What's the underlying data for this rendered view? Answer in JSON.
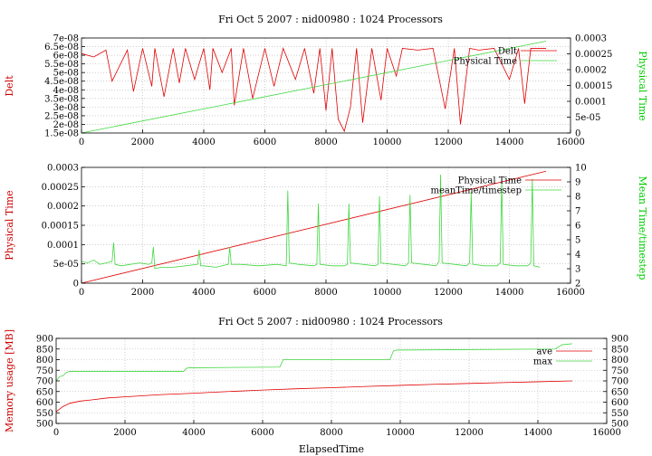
{
  "chart_data": [
    {
      "type": "line",
      "title": "Fri Oct 5 2007 : nid00980 : 1024 Processors",
      "xlabel": "",
      "ylabel": "Delt",
      "y2label": "Physical Time",
      "xlim": [
        0,
        16000
      ],
      "ylim": [
        1.5e-08,
        7e-08
      ],
      "y2lim": [
        0,
        0.0003
      ],
      "x_ticks": [
        "0",
        "2000",
        "4000",
        "6000",
        "8000",
        "10000",
        "12000",
        "14000",
        "16000"
      ],
      "y_ticks": [
        "1.5e-08",
        "2e-08",
        "2.5e-08",
        "3e-08",
        "3.5e-08",
        "4e-08",
        "4.5e-08",
        "5e-08",
        "5.5e-08",
        "6e-08",
        "6.5e-08",
        "7e-08"
      ],
      "y2_ticks": [
        "0",
        "5e-05",
        "0.0001",
        "0.00015",
        "0.0002",
        "0.00025",
        "0.0003"
      ],
      "grid": true,
      "legend_position": "top-right",
      "colors": {
        "left": "#cc0000",
        "right": "#00cc00"
      },
      "series": [
        {
          "name": "Delt",
          "axis": "left",
          "color": "#e00000",
          "x": [
            0,
            400,
            800,
            1000,
            1500,
            1700,
            2000,
            2300,
            2400,
            2700,
            3000,
            3200,
            3400,
            3700,
            4000,
            4200,
            4300,
            4600,
            4900,
            5000,
            5300,
            5600,
            6000,
            6300,
            6600,
            7000,
            7300,
            7600,
            7800,
            8000,
            8200,
            8400,
            8600,
            8800,
            9000,
            9200,
            9500,
            9800,
            10000,
            10300,
            10500,
            11000,
            11500,
            11900,
            12200,
            12400,
            12700,
            13000,
            13500,
            14000,
            14300,
            14500,
            14700,
            15000,
            15200
          ],
          "y": [
            6.1e-08,
            5.9e-08,
            6.3e-08,
            4.5e-08,
            6.3e-08,
            3.9e-08,
            6.4e-08,
            4.2e-08,
            6.4e-08,
            3.6e-08,
            6.4e-08,
            4.4e-08,
            6.4e-08,
            4.6e-08,
            6.4e-08,
            4e-08,
            6.4e-08,
            5e-08,
            6.4e-08,
            3.1e-08,
            6.4e-08,
            3.5e-08,
            6.4e-08,
            4.2e-08,
            6.4e-08,
            4.6e-08,
            6.4e-08,
            3.8e-08,
            6.4e-08,
            2.8e-08,
            6.4e-08,
            2.3e-08,
            1.6e-08,
            3e-08,
            6.4e-08,
            2.1e-08,
            6.4e-08,
            3.4e-08,
            6.4e-08,
            4.8e-08,
            6.4e-08,
            6.3e-08,
            6.4e-08,
            2.9e-08,
            6.4e-08,
            2e-08,
            6.4e-08,
            6.3e-08,
            6.4e-08,
            4.6e-08,
            6.4e-08,
            3.2e-08,
            6.4e-08,
            6.4e-08,
            6.4e-08
          ]
        },
        {
          "name": "Physical Time",
          "axis": "right",
          "color": "#40d840",
          "x": [
            0,
            15200
          ],
          "y": [
            0,
            0.00029
          ]
        }
      ]
    },
    {
      "type": "line",
      "title": "",
      "xlabel": "",
      "ylabel": "Physical Time",
      "y2label": "Mean Time/timestep",
      "xlim": [
        0,
        16000
      ],
      "ylim": [
        0,
        0.0003
      ],
      "y2lim": [
        2,
        10
      ],
      "x_ticks": [
        "0",
        "2000",
        "4000",
        "6000",
        "8000",
        "10000",
        "12000",
        "14000",
        "16000"
      ],
      "y_ticks": [
        "0",
        "5e-05",
        "0.0001",
        "0.00015",
        "0.0002",
        "0.00025",
        "0.0003"
      ],
      "y2_ticks": [
        "2",
        "3",
        "4",
        "5",
        "6",
        "7",
        "8",
        "9",
        "10"
      ],
      "grid": true,
      "legend_position": "top-right",
      "colors": {
        "left": "#cc0000",
        "right": "#00cc00"
      },
      "series": [
        {
          "name": "Physical Time",
          "axis": "left",
          "color": "#e00000",
          "x": [
            0,
            15200
          ],
          "y": [
            0,
            0.00029
          ]
        },
        {
          "name": "meanTime/timestep",
          "axis": "right",
          "color": "#40d840",
          "x": [
            0,
            200,
            400,
            600,
            800,
            1000,
            1050,
            1100,
            1300,
            1600,
            1900,
            2200,
            2300,
            2350,
            2400,
            2600,
            3000,
            3400,
            3800,
            3850,
            3900,
            4000,
            4400,
            4800,
            4850,
            4900,
            5200,
            5800,
            6400,
            6700,
            6750,
            6800,
            7100,
            7600,
            7700,
            7750,
            7800,
            8200,
            8600,
            8700,
            8750,
            8800,
            9200,
            9600,
            9700,
            9750,
            9800,
            10200,
            10600,
            10700,
            10750,
            10800,
            11200,
            11600,
            11700,
            11750,
            11800,
            12200,
            12600,
            12700,
            12750,
            12800,
            13200,
            13600,
            13700,
            13750,
            13800,
            14200,
            14600,
            14700,
            14750,
            14800,
            15000
          ],
          "y": [
            3.5,
            3.4,
            3.6,
            3.3,
            3.4,
            3.5,
            4.8,
            3.3,
            3.2,
            3.3,
            3.4,
            3.3,
            3.4,
            4.5,
            3.0,
            3.1,
            3.1,
            3.2,
            3.3,
            4.3,
            3.2,
            3.2,
            3.1,
            3.3,
            4.5,
            3.3,
            3.3,
            3.2,
            3.3,
            3.2,
            8.4,
            3.4,
            3.3,
            3.2,
            3.3,
            7.5,
            3.3,
            3.2,
            3.2,
            3.3,
            7.5,
            3.4,
            3.3,
            3.2,
            3.3,
            8.0,
            3.4,
            3.3,
            3.2,
            3.4,
            8.1,
            3.4,
            3.3,
            3.2,
            3.5,
            9.5,
            3.4,
            3.3,
            3.2,
            3.4,
            8.3,
            3.3,
            3.2,
            3.2,
            3.4,
            9.1,
            3.3,
            3.2,
            3.2,
            3.4,
            9.2,
            3.2,
            3.1
          ]
        }
      ]
    },
    {
      "type": "line",
      "title": "Fri Oct 5 2007 : nid00980 : 1024 Processors",
      "xlabel": "ElapsedTime",
      "ylabel": "Memory usage [MB]",
      "y2label": "",
      "xlim": [
        0,
        16000
      ],
      "ylim": [
        500,
        900
      ],
      "y2lim": [
        500,
        900
      ],
      "x_ticks": [
        "0",
        "2000",
        "4000",
        "6000",
        "8000",
        "10000",
        "12000",
        "14000",
        "16000"
      ],
      "y_ticks": [
        "500",
        "550",
        "600",
        "650",
        "700",
        "750",
        "800",
        "850",
        "900"
      ],
      "y2_ticks": [
        "500",
        "550",
        "600",
        "650",
        "700",
        "750",
        "800",
        "850",
        "900"
      ],
      "grid": true,
      "legend_position": "top-right",
      "colors": {
        "left": "#cc0000",
        "right": "#000000"
      },
      "series": [
        {
          "name": "ave",
          "axis": "left",
          "color": "#e00000",
          "x": [
            0,
            200,
            400,
            700,
            1000,
            1500,
            2000,
            3000,
            4000,
            5000,
            6000,
            7000,
            8000,
            9000,
            10000,
            11000,
            12000,
            13000,
            14000,
            15000
          ],
          "y": [
            555,
            580,
            595,
            605,
            610,
            620,
            625,
            635,
            642,
            650,
            657,
            663,
            668,
            674,
            679,
            684,
            688,
            692,
            696,
            700
          ]
        },
        {
          "name": "max",
          "axis": "left",
          "color": "#40d840",
          "x": [
            0,
            100,
            200,
            300,
            400,
            3700,
            3800,
            3900,
            4000,
            6500,
            6600,
            6700,
            9700,
            9800,
            9900,
            14500,
            14700,
            15000
          ],
          "y": [
            700,
            720,
            725,
            740,
            745,
            745,
            760,
            762,
            762,
            765,
            800,
            800,
            800,
            840,
            845,
            850,
            870,
            875
          ]
        }
      ]
    }
  ]
}
